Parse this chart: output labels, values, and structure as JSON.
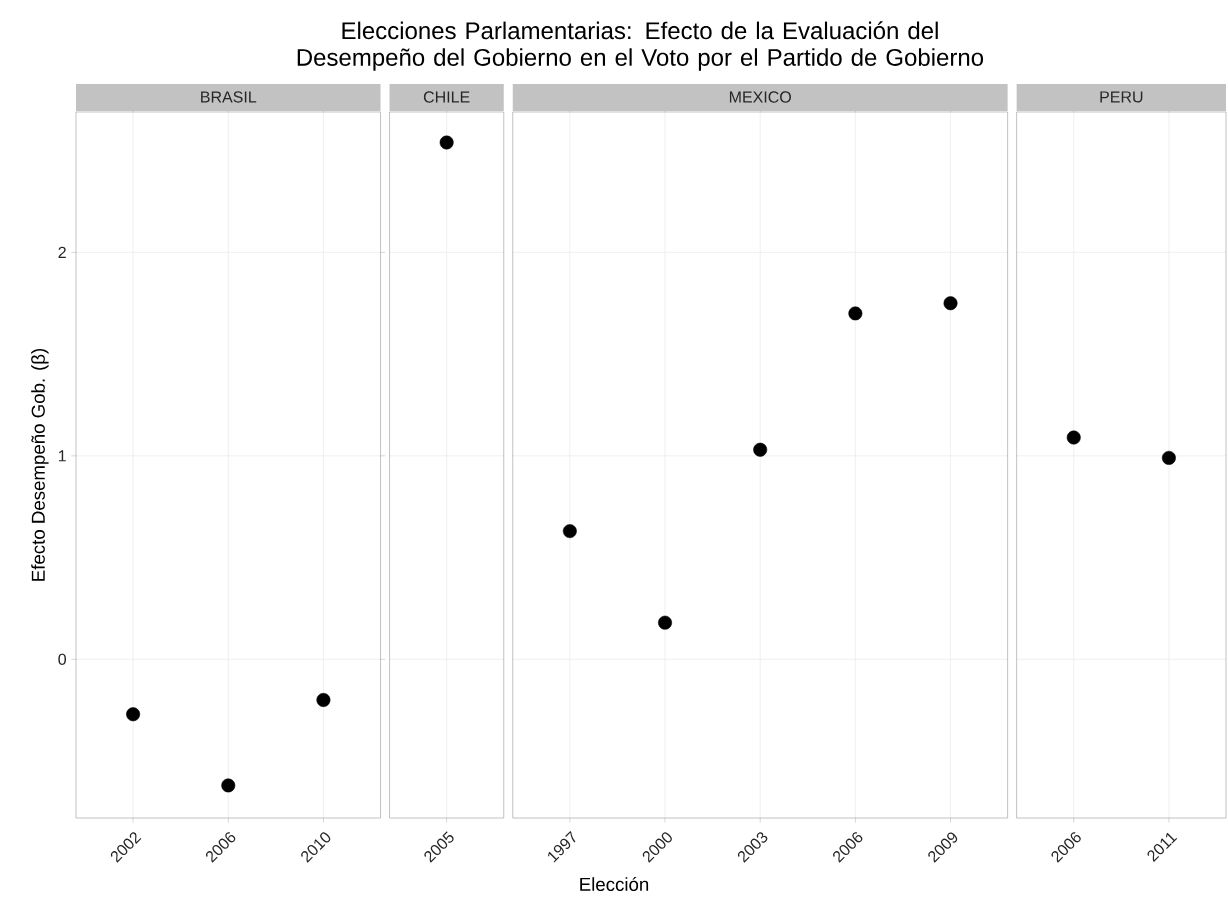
{
  "chart_data": [
    {
      "type": "scatter",
      "title": "BRASIL",
      "ylabel": "Efecto Desempeño Gob. (β)",
      "categories": [
        "2002",
        "2006",
        "2010"
      ],
      "values": [
        -0.27,
        -0.62,
        -0.2
      ],
      "color": "#000000",
      "ylim": [
        -0.78,
        2.69
      ],
      "yticks": [
        0,
        1,
        2
      ],
      "grid": true,
      "marker": "circle"
    },
    {
      "type": "scatter",
      "title": "CHILE",
      "categories": [
        "2005"
      ],
      "values": [
        2.54
      ],
      "color": "#000000",
      "ylim": [
        -0.78,
        2.69
      ],
      "yticks": [
        0,
        1,
        2
      ],
      "grid": true,
      "marker": "circle",
      "tick_labels": "x"
    },
    {
      "type": "scatter",
      "title": "MEXICO",
      "xlabel": "Elección",
      "annotations": [
        "Elecciones Parlamentarias: Efecto de la Evaluación del Desempeño del Gobierno en el Voto por el Partido de Gobierno"
      ],
      "categories": [
        "1997",
        "2000",
        "2003",
        "2006",
        "2009"
      ],
      "values": [
        0.63,
        0.18,
        1.03,
        1.7,
        1.75
      ],
      "color": "#000000",
      "ylim": [
        -0.78,
        2.69
      ],
      "yticks": [
        0,
        1,
        2
      ],
      "grid": true,
      "marker": "circle",
      "tick_labels": "x"
    },
    {
      "type": "scatter",
      "title": "PERU",
      "categories": [
        "2006",
        "2011"
      ],
      "values": [
        1.09,
        0.99
      ],
      "color": "#000000",
      "ylim": [
        -0.78,
        2.69
      ],
      "yticks": [
        0,
        1,
        2
      ],
      "grid": true,
      "marker": "circle",
      "tick_labels": "x"
    }
  ]
}
